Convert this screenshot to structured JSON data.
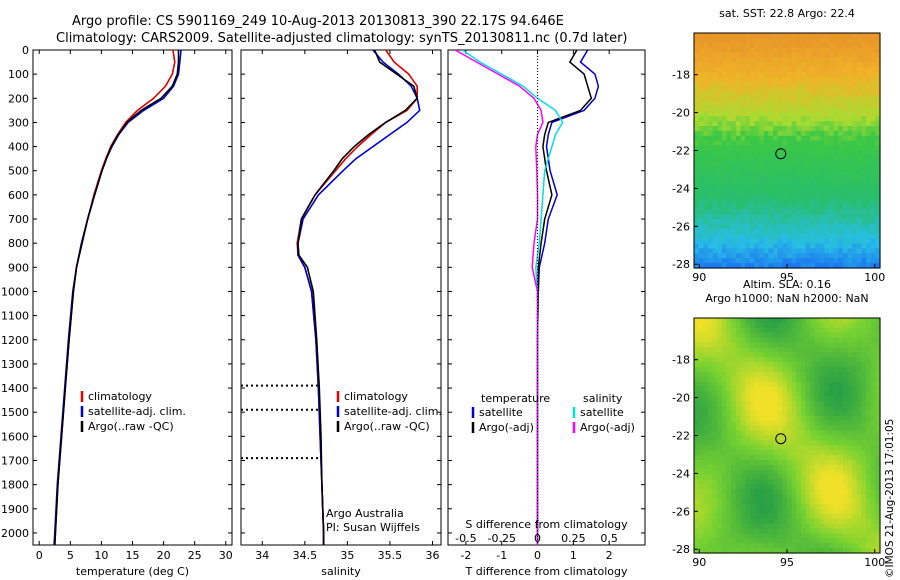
{
  "title": {
    "line1": "Argo profile: CS 5901169_249 10-Aug-2013 20130813_390 22.17S 94.646E",
    "line2": "Climatology: CARS2009. Satellite-adjusted climatology: synTS_20130811.nc (0.7d later)"
  },
  "colors": {
    "climatology": "#e00000",
    "satellite": "#0000d0",
    "argo": "#000000",
    "salinity_satellite": "#00e0e0",
    "salinity_argo": "#ff00ff"
  },
  "depth_axis": {
    "ylim": [
      0,
      2050
    ],
    "ticks": [
      0,
      100,
      200,
      300,
      400,
      500,
      600,
      700,
      800,
      900,
      1000,
      1100,
      1200,
      1300,
      1400,
      1500,
      1600,
      1700,
      1800,
      1900,
      2000
    ]
  },
  "chart_data": [
    {
      "id": "temperature",
      "type": "line",
      "xlabel": "temperature (deg C)",
      "ylabel": "",
      "xlim": [
        -1,
        31
      ],
      "ylim": [
        2050,
        0
      ],
      "xticks": [
        0,
        5,
        10,
        15,
        20,
        25,
        30
      ],
      "legend": [
        "climatology",
        "satellite-adj. clim.",
        "Argo(..raw -QC)"
      ],
      "legend_position": "lower-center",
      "series": [
        {
          "name": "climatology",
          "color": "#e00000",
          "depth": [
            0,
            50,
            100,
            150,
            200,
            250,
            300,
            350,
            400,
            450,
            500,
            600,
            700,
            800,
            900,
            1000,
            1200,
            1400,
            1600,
            1800,
            2000,
            2050
          ],
          "values": [
            21.5,
            21.8,
            21.4,
            20.3,
            18.4,
            15.8,
            13.9,
            12.6,
            11.5,
            10.7,
            10.0,
            8.8,
            7.8,
            6.8,
            6.0,
            5.5,
            4.8,
            4.2,
            3.6,
            3.0,
            2.6,
            2.5
          ]
        },
        {
          "name": "satellite-adj. clim.",
          "color": "#0000d0",
          "depth": [
            0,
            50,
            100,
            150,
            200,
            250,
            300,
            350,
            400,
            450,
            500,
            600,
            700,
            800,
            900,
            1000,
            1200,
            1400,
            1600,
            1800,
            2000,
            2050
          ],
          "values": [
            22.8,
            22.6,
            22.4,
            21.6,
            20.0,
            16.8,
            14.3,
            12.8,
            11.7,
            10.8,
            10.1,
            8.9,
            7.8,
            6.8,
            6.0,
            5.4,
            4.7,
            4.1,
            3.5,
            2.9,
            2.5,
            2.4
          ]
        },
        {
          "name": "Argo(..raw -QC)",
          "color": "#000000",
          "depth": [
            0,
            50,
            100,
            150,
            200,
            250,
            300,
            350,
            400,
            450,
            500,
            600,
            700,
            800,
            900,
            1000,
            1200,
            1400,
            1600,
            1800,
            2000,
            2050
          ],
          "values": [
            22.4,
            22.4,
            22.2,
            21.4,
            19.6,
            16.4,
            14.1,
            12.7,
            11.6,
            10.8,
            10.1,
            8.9,
            7.8,
            6.9,
            6.0,
            5.5,
            4.8,
            4.2,
            3.6,
            3.0,
            2.6,
            2.5
          ]
        }
      ]
    },
    {
      "id": "salinity",
      "type": "line",
      "xlabel": "salinity",
      "ylabel": "",
      "xlim": [
        33.75,
        36.1
      ],
      "ylim": [
        2050,
        0
      ],
      "xticks": [
        34,
        34.5,
        35,
        35.5,
        36
      ],
      "xticklabels": [
        "34",
        "34.5",
        "35",
        "35.5",
        "36"
      ],
      "legend": [
        "climatology",
        "satellite-adj. clim.",
        "Argo(..raw -QC)"
      ],
      "legend_position": "lower-right",
      "annotations": [
        "Argo Australia",
        "PI: Susan Wijffels"
      ],
      "flag_depths": [
        1390,
        1490,
        1690
      ],
      "series": [
        {
          "name": "climatology",
          "color": "#e00000",
          "depth": [
            0,
            50,
            100,
            150,
            200,
            250,
            300,
            350,
            400,
            450,
            500,
            600,
            700,
            800,
            850,
            900,
            1000,
            1200,
            1400,
            1600,
            1800,
            2000,
            2050
          ],
          "values": [
            35.45,
            35.55,
            35.72,
            35.82,
            35.82,
            35.7,
            35.45,
            35.28,
            35.12,
            34.98,
            34.86,
            34.62,
            34.46,
            34.41,
            34.42,
            34.5,
            34.58,
            34.63,
            34.66,
            34.68,
            34.7,
            34.72,
            34.72
          ]
        },
        {
          "name": "satellite-adj. clim.",
          "color": "#0000d0",
          "depth": [
            0,
            50,
            100,
            150,
            200,
            250,
            300,
            350,
            400,
            450,
            500,
            600,
            700,
            800,
            850,
            900,
            1000,
            1200,
            1400,
            1600,
            1800,
            2000,
            2050
          ],
          "values": [
            35.3,
            35.42,
            35.6,
            35.75,
            35.82,
            35.85,
            35.7,
            35.5,
            35.3,
            35.1,
            34.95,
            34.66,
            34.48,
            34.42,
            34.42,
            34.5,
            34.58,
            34.63,
            34.66,
            34.68,
            34.7,
            34.72,
            34.72
          ]
        },
        {
          "name": "Argo(..raw -QC)",
          "color": "#000000",
          "depth": [
            0,
            50,
            100,
            150,
            200,
            250,
            300,
            350,
            400,
            450,
            500,
            600,
            700,
            800,
            850,
            900,
            1000,
            1200,
            1400,
            1600,
            1800,
            2000,
            2050
          ],
          "values": [
            35.32,
            35.38,
            35.58,
            35.78,
            35.82,
            35.68,
            35.45,
            35.25,
            35.08,
            34.94,
            34.84,
            34.62,
            34.46,
            34.42,
            34.43,
            34.53,
            34.6,
            34.64,
            34.67,
            34.69,
            34.7,
            34.72,
            34.72
          ]
        }
      ]
    },
    {
      "id": "difference",
      "type": "line",
      "xlabel": "T difference from climatology",
      "xlabel_top": "S difference from climatology",
      "ylabel": "",
      "xlim": [
        -2.5,
        3
      ],
      "ylim": [
        2050,
        0
      ],
      "xticks": [
        -2,
        -1,
        0,
        1,
        2
      ],
      "xticks_salinity": [
        -0.5,
        -0.25,
        0,
        0.25,
        0.5
      ],
      "zero_line": "dotted",
      "legend_temperature": {
        "title": "temperature",
        "entries": [
          "satellite",
          "Argo(-adj)"
        ]
      },
      "legend_salinity": {
        "title": "salinity",
        "entries": [
          "satellite",
          "Argo(-adj)"
        ]
      },
      "series": [
        {
          "name": "temperature satellite",
          "color": "#0000d0",
          "depth": [
            0,
            50,
            100,
            150,
            200,
            250,
            300,
            350,
            400,
            500,
            600,
            700,
            800,
            900,
            1000,
            1200,
            1500,
            2050
          ],
          "values": [
            1.4,
            1.2,
            1.6,
            1.7,
            1.6,
            1.3,
            0.4,
            0.3,
            0.25,
            0.35,
            0.55,
            0.3,
            0.2,
            0.05,
            0.02,
            0.0,
            0.0,
            0.0
          ]
        },
        {
          "name": "temperature Argo(-adj)",
          "color": "#000000",
          "depth": [
            0,
            50,
            100,
            150,
            200,
            250,
            300,
            350,
            400,
            500,
            600,
            700,
            800,
            900,
            1000,
            1200,
            1500,
            2050
          ],
          "values": [
            1.1,
            0.9,
            1.3,
            1.4,
            1.5,
            1.2,
            0.3,
            0.2,
            0.15,
            0.25,
            0.4,
            0.2,
            0.1,
            0.02,
            0.02,
            0.0,
            0.0,
            0.0
          ]
        },
        {
          "name": "salinity satellite",
          "color": "#00e0e0",
          "depth": [
            0,
            50,
            100,
            150,
            200,
            250,
            300,
            350,
            400,
            500,
            600,
            700,
            800,
            900,
            1000,
            1200,
            1500,
            2050
          ],
          "values": [
            -2.1,
            -1.6,
            -1.0,
            -0.4,
            0.0,
            0.5,
            0.7,
            0.5,
            0.4,
            0.2,
            0.15,
            0.1,
            0.05,
            -0.05,
            0.0,
            0.0,
            0.0,
            0.0
          ]
        },
        {
          "name": "salinity Argo(-adj)",
          "color": "#ff00ff",
          "depth": [
            0,
            50,
            100,
            150,
            200,
            250,
            300,
            350,
            400,
            500,
            600,
            700,
            800,
            900,
            1000,
            1200,
            1500,
            2050
          ],
          "values": [
            -2.3,
            -1.7,
            -1.1,
            -0.5,
            -0.1,
            0.1,
            0.15,
            0.0,
            -0.05,
            -0.02,
            0.0,
            0.0,
            -0.1,
            -0.15,
            0.0,
            0.0,
            0.0,
            0.0
          ]
        }
      ]
    },
    {
      "id": "sst-map",
      "type": "heatmap",
      "title": "sat. SST: 22.8 Argo: 22.4",
      "xlim": [
        89.7,
        100.3
      ],
      "ylim": [
        -28.2,
        -15.8
      ],
      "xticks": [
        90,
        95,
        100
      ],
      "yticks": [
        -18,
        -20,
        -22,
        -24,
        -26,
        -28
      ],
      "marker": {
        "lon": 94.646,
        "lat": -22.17
      }
    },
    {
      "id": "sla-map",
      "type": "heatmap",
      "title": "Altim. SLA: 0.16",
      "subtitle": "Argo h1000: NaN h2000: NaN",
      "xlim": [
        89.7,
        100.3
      ],
      "ylim": [
        -28.2,
        -15.8
      ],
      "xticks": [
        90,
        95,
        100
      ],
      "yticks": [
        -18,
        -20,
        -22,
        -24,
        -26,
        -28
      ],
      "marker": {
        "lon": 94.646,
        "lat": -22.17
      }
    }
  ],
  "footer": {
    "stamp": "©IMOS 21-Aug-2013 17:01:05"
  }
}
